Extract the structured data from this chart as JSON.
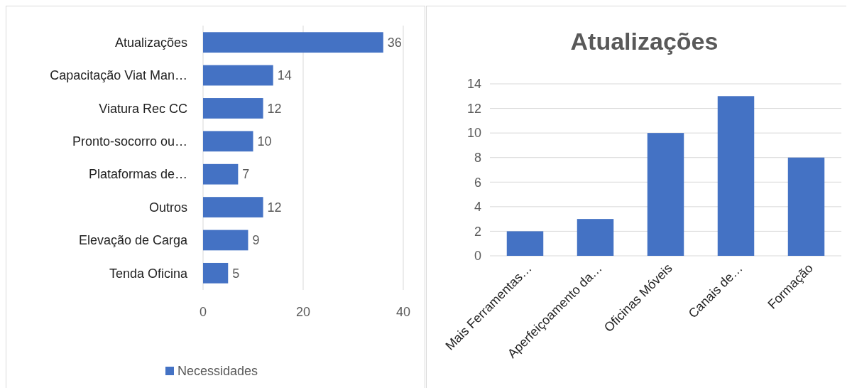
{
  "chart_data": [
    {
      "type": "bar",
      "orientation": "horizontal",
      "categories": [
        "Atualizações",
        "Capacitação Viat Man…",
        "Viatura Rec CC",
        "Pronto-socorro ou…",
        "Plataformas de…",
        "Outros",
        "Elevação de Carga",
        "Tenda Oficina"
      ],
      "series": [
        {
          "name": "Necessidades",
          "color": "#4472c4",
          "values": [
            36,
            14,
            12,
            10,
            7,
            12,
            9,
            5
          ]
        }
      ],
      "xlim": [
        0,
        40
      ],
      "xticks": [
        0,
        20,
        40
      ],
      "grid": "x",
      "data_labels": true,
      "legend": "bottom"
    },
    {
      "type": "bar",
      "title": "Atualizações",
      "categories": [
        "Mais Ferramentas…",
        "Aperfeiçoamento da…",
        "Oficinas Móveis",
        "Canais de…",
        "Formação"
      ],
      "series": [
        {
          "color": "#4472c4",
          "values": [
            2,
            3,
            10,
            13,
            8
          ]
        }
      ],
      "ylim": [
        0,
        14
      ],
      "yticks": [
        0,
        2,
        4,
        6,
        8,
        10,
        12,
        14
      ],
      "grid": "y",
      "legend": false
    }
  ]
}
